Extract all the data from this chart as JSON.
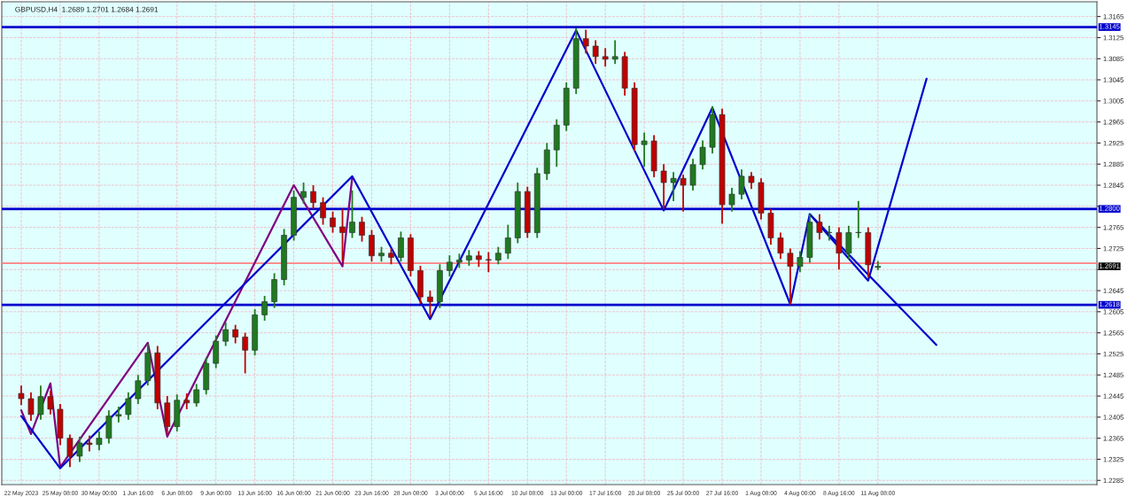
{
  "chart_data": {
    "type": "candlestick",
    "title": "GBPUSD,H4  1.2689 1.2701 1.2684 1.2691",
    "categories": [
      "22 May 2023",
      null,
      null,
      null,
      "25 May 08:00",
      null,
      null,
      null,
      "30 May 00:00",
      null,
      null,
      null,
      "1 Jun 16:00",
      null,
      null,
      null,
      "6 Jun 08:00",
      null,
      null,
      null,
      "9 Jun 00:00",
      null,
      null,
      null,
      "13 Jun 16:00",
      null,
      null,
      null,
      "16 Jun 08:00",
      null,
      null,
      null,
      "21 Jun 00:00",
      null,
      null,
      null,
      "23 Jun 16:00",
      null,
      null,
      null,
      "28 Jun 08:00",
      null,
      null,
      null,
      "3 Jul 00:00",
      null,
      null,
      null,
      "5 Jul 16:00",
      null,
      null,
      null,
      "10 Jul 08:00",
      null,
      null,
      null,
      "13 Jul 00:00",
      null,
      null,
      null,
      "17 Jul 16:00",
      null,
      null,
      null,
      "20 Jul 08:00",
      null,
      null,
      null,
      "25 Jul 00:00",
      null,
      null,
      null,
      "27 Jul 16:00",
      null,
      null,
      null,
      "1 Aug 08:00",
      null,
      null,
      null,
      "4 Aug 00:00",
      null,
      null,
      null,
      "8 Aug 16:00",
      null,
      null,
      null,
      "11 Aug 08:00",
      null,
      null,
      null,
      null,
      null,
      null,
      null,
      null,
      null,
      null,
      null,
      null,
      null,
      null,
      null,
      null,
      null,
      null,
      null,
      null,
      null,
      null
    ],
    "ohlc": [
      [
        1.245,
        1.2465,
        1.2428,
        1.244
      ],
      [
        1.244,
        1.2452,
        1.2398,
        1.241
      ],
      [
        1.241,
        1.2465,
        1.24,
        1.2444
      ],
      [
        1.2444,
        1.2455,
        1.241,
        1.242
      ],
      [
        1.242,
        1.243,
        1.2352,
        1.2365
      ],
      [
        1.2365,
        1.2372,
        1.231,
        1.2331
      ],
      [
        1.2331,
        1.2368,
        1.232,
        1.2356
      ],
      [
        1.2356,
        1.237,
        1.234,
        1.2353
      ],
      [
        1.2353,
        1.2378,
        1.2342,
        1.2365
      ],
      [
        1.2365,
        1.2418,
        1.2355,
        1.2407
      ],
      [
        1.2407,
        1.2425,
        1.2395,
        1.241
      ],
      [
        1.241,
        1.2452,
        1.24,
        1.244
      ],
      [
        1.244,
        1.2485,
        1.243,
        1.2474
      ],
      [
        1.2474,
        1.2544,
        1.2465,
        1.2527
      ],
      [
        1.2527,
        1.254,
        1.242,
        1.2432
      ],
      [
        1.2432,
        1.2445,
        1.2372,
        1.2387
      ],
      [
        1.2387,
        1.2448,
        1.2378,
        1.2437
      ],
      [
        1.2437,
        1.245,
        1.242,
        1.2432
      ],
      [
        1.2432,
        1.2468,
        1.2425,
        1.2457
      ],
      [
        1.2457,
        1.2518,
        1.2448,
        1.2507
      ],
      [
        1.2507,
        1.256,
        1.2498,
        1.2549
      ],
      [
        1.2549,
        1.2585,
        1.254,
        1.2571
      ],
      [
        1.2571,
        1.258,
        1.2545,
        1.2557
      ],
      [
        1.2557,
        1.2565,
        1.2488,
        1.2532
      ],
      [
        1.2532,
        1.261,
        1.2522,
        1.2599
      ],
      [
        1.2599,
        1.2635,
        1.2588,
        1.2624
      ],
      [
        1.2624,
        1.2678,
        1.2612,
        1.2666
      ],
      [
        1.2666,
        1.2762,
        1.2655,
        1.275
      ],
      [
        1.275,
        1.2835,
        1.274,
        1.2822
      ],
      [
        1.2822,
        1.285,
        1.281,
        1.2833
      ],
      [
        1.2833,
        1.2845,
        1.28,
        1.2812
      ],
      [
        1.2812,
        1.2822,
        1.277,
        1.2783
      ],
      [
        1.2783,
        1.2795,
        1.2755,
        1.2766
      ],
      [
        1.2766,
        1.28,
        1.27,
        1.2755
      ],
      [
        1.2755,
        1.2835,
        1.2745,
        1.2775
      ],
      [
        1.2775,
        1.2785,
        1.2738,
        1.275
      ],
      [
        1.275,
        1.276,
        1.27,
        1.2711
      ],
      [
        1.2711,
        1.2728,
        1.27,
        1.2716
      ],
      [
        1.2716,
        1.2725,
        1.2695,
        1.2708
      ],
      [
        1.2708,
        1.2757,
        1.27,
        1.2745
      ],
      [
        1.2745,
        1.2752,
        1.2672,
        1.2683
      ],
      [
        1.2683,
        1.2692,
        1.262,
        1.2633
      ],
      [
        1.2633,
        1.2645,
        1.2595,
        1.2624
      ],
      [
        1.2624,
        1.2695,
        1.2612,
        1.2683
      ],
      [
        1.2683,
        1.2712,
        1.2672,
        1.2699
      ],
      [
        1.2699,
        1.2715,
        1.2688,
        1.2703
      ],
      [
        1.2703,
        1.2722,
        1.2692,
        1.2711
      ],
      [
        1.2711,
        1.272,
        1.269,
        1.2704
      ],
      [
        1.2704,
        1.2718,
        1.268,
        1.2703
      ],
      [
        1.2703,
        1.2728,
        1.2695,
        1.2716
      ],
      [
        1.2716,
        1.277,
        1.2705,
        1.2745
      ],
      [
        1.2745,
        1.285,
        1.2735,
        1.2833
      ],
      [
        1.2833,
        1.2842,
        1.2745,
        1.2755
      ],
      [
        1.2755,
        1.2878,
        1.2745,
        1.2867
      ],
      [
        1.2867,
        1.2925,
        1.2855,
        1.2912
      ],
      [
        1.2912,
        1.297,
        1.288,
        1.2959
      ],
      [
        1.2959,
        1.304,
        1.2948,
        1.3029
      ],
      [
        1.3029,
        1.3143,
        1.3018,
        1.3123
      ],
      [
        1.3123,
        1.314,
        1.3095,
        1.3109
      ],
      [
        1.3109,
        1.312,
        1.3075,
        1.3089
      ],
      [
        1.3089,
        1.3105,
        1.307,
        1.3084
      ],
      [
        1.3084,
        1.312,
        1.3075,
        1.3089
      ],
      [
        1.3089,
        1.3098,
        1.3015,
        1.3029
      ],
      [
        1.3029,
        1.304,
        1.291,
        1.2922
      ],
      [
        1.2922,
        1.2945,
        1.288,
        1.2929
      ],
      [
        1.2929,
        1.294,
        1.286,
        1.2872
      ],
      [
        1.2872,
        1.2885,
        1.28,
        1.285
      ],
      [
        1.285,
        1.287,
        1.2815,
        1.2858
      ],
      [
        1.2858,
        1.2865,
        1.2795,
        1.2845
      ],
      [
        1.2845,
        1.2895,
        1.2835,
        1.2884
      ],
      [
        1.2884,
        1.293,
        1.2875,
        1.2917
      ],
      [
        1.2917,
        1.2995,
        1.2905,
        1.2979
      ],
      [
        1.2979,
        1.299,
        1.2772,
        1.2808
      ],
      [
        1.2808,
        1.284,
        1.2795,
        1.2828
      ],
      [
        1.2828,
        1.2875,
        1.2818,
        1.2862
      ],
      [
        1.2862,
        1.287,
        1.2838,
        1.285
      ],
      [
        1.285,
        1.2858,
        1.278,
        1.2792
      ],
      [
        1.2792,
        1.28,
        1.2732,
        1.2745
      ],
      [
        1.2745,
        1.2755,
        1.2705,
        1.2716
      ],
      [
        1.2716,
        1.2725,
        1.2618,
        1.2691
      ],
      [
        1.2691,
        1.272,
        1.268,
        1.2708
      ],
      [
        1.2708,
        1.279,
        1.2698,
        1.2775
      ],
      [
        1.2775,
        1.279,
        1.2742,
        1.2755
      ],
      [
        1.2755,
        1.2768,
        1.274,
        1.2755
      ],
      [
        1.2755,
        1.2765,
        1.2685,
        1.2716
      ],
      [
        1.2716,
        1.2768,
        1.2705,
        1.2755
      ],
      [
        1.2755,
        1.2815,
        1.2745,
        1.2755
      ],
      [
        1.2755,
        1.2765,
        1.267,
        1.2694
      ],
      [
        1.2689,
        1.2701,
        1.2684,
        1.2691
      ],
      null,
      null,
      null,
      null,
      null,
      null,
      null,
      null,
      null,
      null,
      null,
      null,
      null,
      null,
      null,
      null,
      null,
      null,
      null,
      null,
      null,
      null
    ],
    "colors": [
      "#c00000",
      "#c00000",
      "#1f7a1f",
      "#c00000",
      "#c00000",
      "#c00000",
      "#1f7a1f",
      "#c00000",
      "#1f7a1f",
      "#1f7a1f",
      "#1f7a1f",
      "#1f7a1f",
      "#1f7a1f",
      "#1f7a1f",
      "#c00000",
      "#c00000",
      "#1f7a1f",
      "#c00000",
      "#1f7a1f",
      "#1f7a1f",
      "#1f7a1f",
      "#1f7a1f",
      "#c00000",
      "#c00000",
      "#1f7a1f",
      "#1f7a1f",
      "#1f7a1f",
      "#1f7a1f",
      "#1f7a1f",
      "#1f7a1f",
      "#c00000",
      "#c00000",
      "#c00000",
      "#c00000",
      "#1f7a1f",
      "#c00000",
      "#c00000",
      "#1f7a1f",
      "#c00000",
      "#1f7a1f",
      "#c00000",
      "#c00000",
      "#c00000",
      "#1f7a1f",
      "#1f7a1f",
      "#1f7a1f",
      "#1f7a1f",
      "#c00000",
      "#c00000",
      "#1f7a1f",
      "#1f7a1f",
      "#1f7a1f",
      "#c00000",
      "#1f7a1f",
      "#1f7a1f",
      "#1f7a1f",
      "#1f7a1f",
      "#1f7a1f",
      "#c00000",
      "#c00000",
      "#c00000",
      "#1f7a1f",
      "#c00000",
      "#c00000",
      "#1f7a1f",
      "#c00000",
      "#c00000",
      "#1f7a1f",
      "#c00000",
      "#1f7a1f",
      "#1f7a1f",
      "#1f7a1f",
      "#c00000",
      "#1f7a1f",
      "#1f7a1f",
      "#c00000",
      "#c00000",
      "#c00000",
      "#c00000",
      "#c00000",
      "#1f7a1f",
      "#1f7a1f",
      "#c00000",
      "#1f7a1f",
      "#c00000",
      "#1f7a1f",
      "#1f7a1f",
      "#c00000",
      "#1f7a1f",
      null,
      null,
      null,
      null,
      null,
      null,
      null,
      null,
      null,
      null,
      null,
      null,
      null,
      null,
      null,
      null,
      null,
      null,
      null,
      null,
      null,
      null
    ],
    "series": [
      {
        "type": "line",
        "color": "#800080",
        "values": [
          1.2418,
          1.2373,
          null,
          1.2469,
          1.231,
          null,
          null,
          null,
          null,
          null,
          null,
          null,
          null,
          1.2546,
          null,
          1.2368,
          null,
          null,
          null,
          null,
          null,
          null,
          null,
          null,
          null,
          null,
          null,
          null,
          1.2845,
          null,
          null,
          null,
          null,
          1.2691,
          1.286,
          null,
          null,
          null,
          null,
          null,
          null,
          null,
          null,
          null,
          null,
          null,
          null,
          null,
          null,
          null,
          null,
          null,
          null,
          null,
          null,
          null,
          null,
          null,
          null,
          null,
          null,
          null,
          null,
          null,
          null,
          null,
          null,
          null,
          null,
          null,
          null,
          null,
          null,
          null,
          null,
          null,
          null,
          null,
          null,
          null,
          null,
          null,
          null,
          null,
          null,
          null,
          null,
          null,
          null,
          null,
          null,
          null,
          null,
          null,
          null,
          null,
          null,
          null,
          null,
          null,
          null,
          null,
          null,
          null,
          null,
          null,
          null,
          null,
          null,
          null,
          null
        ]
      },
      {
        "type": "line",
        "color": "#0000cc",
        "values": [
          1.2407,
          null,
          null,
          null,
          1.2308,
          null,
          null,
          null,
          null,
          null,
          null,
          null,
          null,
          null,
          null,
          null,
          null,
          null,
          null,
          null,
          null,
          null,
          null,
          null,
          null,
          null,
          null,
          null,
          null,
          null,
          null,
          null,
          null,
          null,
          1.2862,
          null,
          null,
          null,
          null,
          null,
          null,
          null,
          1.2591,
          null,
          null,
          null,
          null,
          null,
          null,
          null,
          null,
          null,
          null,
          null,
          null,
          null,
          null,
          1.3139,
          null,
          null,
          null,
          null,
          null,
          null,
          null,
          null,
          1.2797,
          null,
          null,
          null,
          null,
          1.2992,
          null,
          null,
          null,
          null,
          null,
          null,
          null,
          1.2619,
          null,
          1.279,
          null,
          null,
          null,
          null,
          null,
          1.2664,
          null,
          null,
          null,
          null,
          null,
          1.3047,
          null,
          null,
          null,
          null,
          null,
          null,
          null,
          null,
          null,
          null,
          null,
          null,
          null,
          null,
          null,
          null,
          null
        ]
      },
      {
        "type": "line",
        "color": "#0000cc",
        "values": [
          null,
          null,
          null,
          null,
          null,
          null,
          null,
          null,
          null,
          null,
          null,
          null,
          null,
          null,
          null,
          null,
          null,
          null,
          null,
          null,
          null,
          null,
          null,
          null,
          null,
          null,
          null,
          null,
          null,
          null,
          null,
          null,
          null,
          null,
          null,
          null,
          null,
          null,
          null,
          null,
          null,
          null,
          null,
          null,
          null,
          null,
          null,
          null,
          null,
          null,
          null,
          null,
          null,
          null,
          null,
          null,
          null,
          null,
          null,
          null,
          null,
          null,
          null,
          null,
          null,
          null,
          null,
          null,
          null,
          null,
          null,
          null,
          null,
          null,
          null,
          null,
          null,
          null,
          null,
          null,
          null,
          1.279,
          null,
          null,
          null,
          null,
          null,
          null,
          null,
          null,
          null,
          null,
          null,
          null,
          1.2542,
          null,
          null,
          null,
          null,
          null,
          null,
          null,
          null,
          null,
          null,
          null,
          null,
          null,
          null,
          null,
          null
        ]
      }
    ],
    "ylim": [
      1.2277,
      1.3193
    ],
    "yticks": [
      1.2285,
      1.2325,
      1.2365,
      1.2405,
      1.2445,
      1.2485,
      1.2525,
      1.2565,
      1.2605,
      1.2645,
      {
        "value": 1.2685,
        "label": null
      },
      1.2725,
      1.2765,
      {
        "value": 1.2805,
        "label": null
      },
      1.2845,
      1.2885,
      1.2925,
      1.2965,
      1.3005,
      1.3045,
      1.3085,
      1.3125,
      1.3165
    ],
    "ref_lines": [
      {
        "axis": "y",
        "value": 1.3145,
        "label": "1.3145",
        "color": "#0000cc"
      },
      {
        "axis": "y",
        "value": 1.28,
        "label": "1.2800",
        "color": "#0000cc"
      },
      {
        "axis": "y",
        "value": 1.2618,
        "label": "1.2618",
        "color": "#0000cc"
      },
      {
        "axis": "y",
        "value": 1.2697,
        "color": "#ff8080"
      }
    ],
    "annotations": [
      {
        "text": "1.2691",
        "y": 1.2691
      }
    ],
    "grid": true,
    "legend": false
  }
}
